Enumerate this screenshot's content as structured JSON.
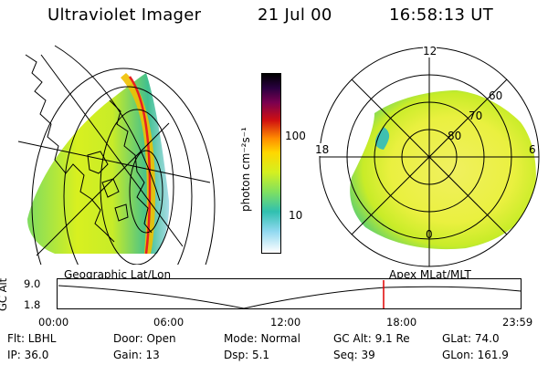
{
  "header": {
    "instrument": "Ultraviolet Imager",
    "date": "21 Jul 00",
    "time": "16:58:13 UT"
  },
  "geo_panel": {
    "label": "Geographic Lat/Lon"
  },
  "colorbar": {
    "unit_label": "photon cm⁻²s⁻¹",
    "ticks": [
      "100",
      "10"
    ]
  },
  "polar_panel": {
    "label": "Apex MLat/MLT",
    "lat_labels": [
      "60",
      "70",
      "80"
    ],
    "mlt_labels": [
      "12",
      "18",
      "6",
      "0"
    ]
  },
  "altitude_plot": {
    "ylabel": "GC Alt",
    "yticks": [
      "9.0",
      "1.8"
    ],
    "xticks": [
      "00:00",
      "06:00",
      "12:00",
      "18:00",
      "23:59"
    ],
    "marker_color": "#e00000"
  },
  "info": {
    "row1": {
      "flt": "Flt: LBHL",
      "door": "Door: Open",
      "mode": "Mode: Normal",
      "gcalt": "GC Alt: 9.1 Re",
      "glat": "GLat:  74.0"
    },
    "row2": {
      "ip": "IP: 36.0",
      "gain": "Gain: 13",
      "dsp": "Dsp:     5.1",
      "seq": "Seq: 39",
      "glon": "GLon: 161.9"
    }
  }
}
